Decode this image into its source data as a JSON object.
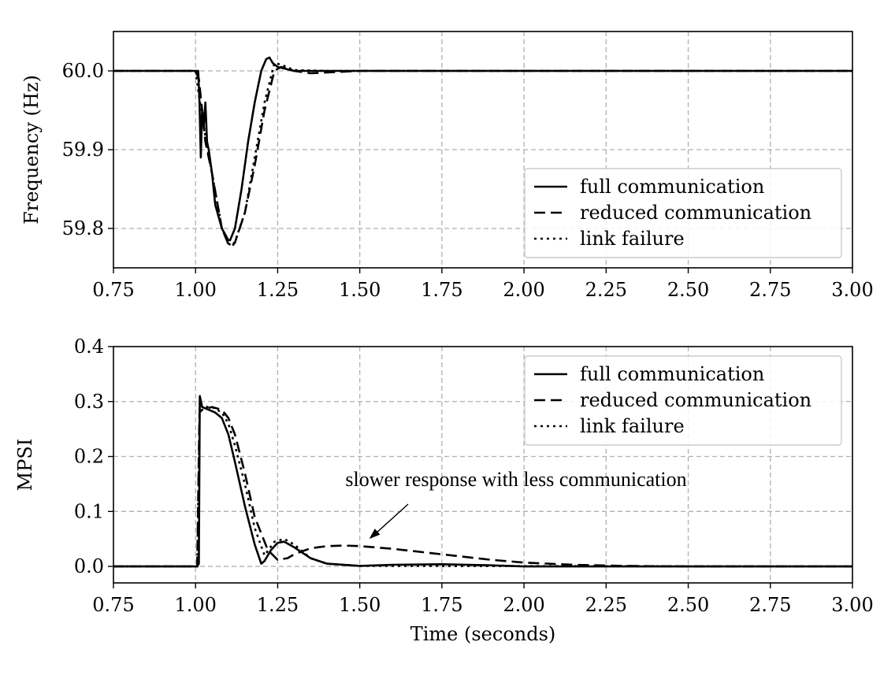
{
  "chart_data": [
    {
      "type": "line",
      "title": "",
      "xlabel": "",
      "ylabel": "Frequency (Hz)",
      "xlim": [
        0.75,
        3.0
      ],
      "ylim": [
        59.75,
        60.05
      ],
      "xticks": [
        "0.75",
        "1.00",
        "1.25",
        "1.50",
        "1.75",
        "2.00",
        "2.25",
        "2.50",
        "2.75",
        "3.00"
      ],
      "yticks": [
        "59.8",
        "59.9",
        "60.0"
      ],
      "grid": true,
      "legend_position": "lower-right",
      "legend": [
        "full communication",
        "reduced communication",
        "link failure"
      ],
      "series": [
        {
          "name": "full communication",
          "style": "solid",
          "x": [
            0.75,
            1.0,
            1.008,
            1.012,
            1.016,
            1.02,
            1.025,
            1.03,
            1.035,
            1.04,
            1.05,
            1.06,
            1.08,
            1.1,
            1.105,
            1.12,
            1.14,
            1.16,
            1.18,
            1.2,
            1.215,
            1.225,
            1.235,
            1.25,
            1.3,
            1.4,
            1.5,
            3.0
          ],
          "y": [
            60.0,
            60.0,
            60.0,
            59.96,
            59.89,
            59.95,
            59.93,
            59.96,
            59.91,
            59.9,
            59.87,
            59.83,
            59.8,
            59.785,
            59.785,
            59.8,
            59.85,
            59.91,
            59.96,
            60.0,
            60.015,
            60.017,
            60.01,
            60.005,
            60.0,
            60.0,
            60.0,
            60.0
          ]
        },
        {
          "name": "reduced communication",
          "style": "dashed",
          "x": [
            0.75,
            1.0,
            1.01,
            1.02,
            1.03,
            1.05,
            1.08,
            1.1,
            1.11,
            1.12,
            1.15,
            1.18,
            1.21,
            1.24,
            1.26,
            1.3,
            1.35,
            1.4,
            1.5,
            3.0
          ],
          "y": [
            60.0,
            60.0,
            59.99,
            59.95,
            59.91,
            59.87,
            59.8,
            59.78,
            59.777,
            59.782,
            59.82,
            59.88,
            59.95,
            60.0,
            60.005,
            60.0,
            59.997,
            59.998,
            60.0,
            60.0
          ]
        },
        {
          "name": "link failure",
          "style": "dotted",
          "x": [
            0.75,
            1.0,
            1.02,
            1.05,
            1.08,
            1.1,
            1.11,
            1.12,
            1.15,
            1.18,
            1.21,
            1.24,
            1.26,
            1.3,
            1.4,
            3.0
          ],
          "y": [
            60.0,
            60.0,
            59.94,
            59.87,
            59.8,
            59.781,
            59.778,
            59.783,
            59.82,
            59.89,
            59.96,
            60.01,
            60.008,
            60.001,
            60.0,
            60.0
          ]
        }
      ]
    },
    {
      "type": "line",
      "title": "",
      "xlabel": "Time (seconds)",
      "ylabel": "MPSI",
      "xlim": [
        0.75,
        3.0
      ],
      "ylim": [
        -0.03,
        0.4
      ],
      "xticks": [
        "0.75",
        "1.00",
        "1.25",
        "1.50",
        "1.75",
        "2.00",
        "2.25",
        "2.50",
        "2.75",
        "3.00"
      ],
      "yticks": [
        "0.0",
        "0.1",
        "0.2",
        "0.3",
        "0.4"
      ],
      "grid": true,
      "legend_position": "upper-right",
      "legend": [
        "full communication",
        "reduced communication",
        "link failure"
      ],
      "annotation": {
        "text": "slower response with less communication",
        "arrow_to": [
          1.5,
          0.05
        ]
      },
      "series": [
        {
          "name": "full communication",
          "style": "solid",
          "x": [
            0.75,
            1.005,
            1.01,
            1.013,
            1.02,
            1.04,
            1.06,
            1.08,
            1.1,
            1.12,
            1.15,
            1.18,
            1.2,
            1.21,
            1.23,
            1.25,
            1.27,
            1.3,
            1.35,
            1.4,
            1.5,
            1.6,
            1.75,
            1.9,
            2.0,
            3.0
          ],
          "y": [
            0.0,
            0.0,
            0.005,
            0.31,
            0.29,
            0.285,
            0.28,
            0.27,
            0.24,
            0.19,
            0.11,
            0.04,
            0.005,
            0.01,
            0.03,
            0.043,
            0.045,
            0.035,
            0.015,
            0.005,
            0.001,
            0.003,
            0.004,
            0.002,
            0.0,
            0.0
          ]
        },
        {
          "name": "reduced communication",
          "style": "dashed",
          "x": [
            0.75,
            1.005,
            1.012,
            1.02,
            1.05,
            1.08,
            1.1,
            1.12,
            1.15,
            1.18,
            1.22,
            1.25,
            1.28,
            1.3,
            1.35,
            1.4,
            1.45,
            1.5,
            1.6,
            1.75,
            1.9,
            2.0,
            2.15,
            2.3,
            2.5,
            3.0
          ],
          "y": [
            0.0,
            0.0,
            0.28,
            0.285,
            0.29,
            0.285,
            0.27,
            0.24,
            0.17,
            0.09,
            0.03,
            0.012,
            0.015,
            0.022,
            0.033,
            0.037,
            0.038,
            0.037,
            0.032,
            0.022,
            0.012,
            0.007,
            0.003,
            0.001,
            0.0,
            0.0
          ]
        },
        {
          "name": "link failure",
          "style": "dotted",
          "x": [
            0.75,
            1.005,
            1.013,
            1.02,
            1.05,
            1.08,
            1.1,
            1.12,
            1.15,
            1.18,
            1.21,
            1.24,
            1.27,
            1.3,
            1.35,
            1.4,
            1.5,
            3.0
          ],
          "y": [
            0.0,
            0.0,
            0.3,
            0.29,
            0.29,
            0.28,
            0.26,
            0.22,
            0.15,
            0.07,
            0.02,
            0.045,
            0.05,
            0.04,
            0.015,
            0.005,
            0.001,
            0.0
          ]
        }
      ]
    }
  ]
}
